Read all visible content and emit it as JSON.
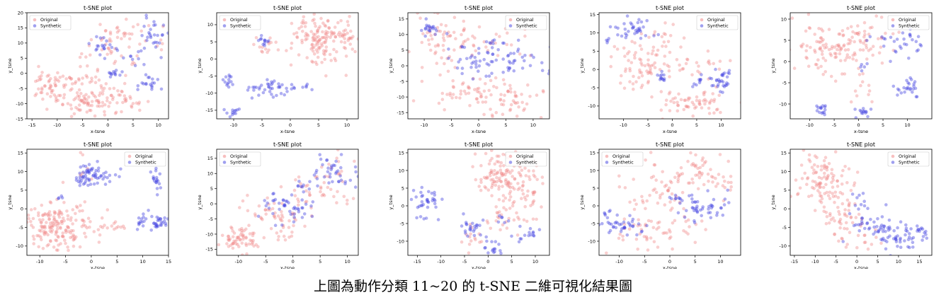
{
  "caption": "上圖為動作分類 11~20 的 t-SNE 二維可視化結果圖",
  "colors": {
    "original": "#f08080",
    "synthetic": "#4040e0"
  },
  "chart_data": [
    {
      "type": "scatter",
      "title": "t-SNE plot",
      "xlabel": "x-tsne",
      "ylabel": "y_tsne",
      "xlim": [
        -16,
        12
      ],
      "ylim": [
        -15,
        20
      ],
      "xticks": [
        -15,
        -10,
        -5,
        0,
        5,
        10
      ],
      "yticks": [
        -15,
        -10,
        -5,
        0,
        5,
        10,
        15,
        20
      ],
      "legend": {
        "loc": "upper-left",
        "entries": [
          "Original",
          "Synthetic"
        ]
      },
      "series": [
        {
          "name": "Original",
          "clusters": [
            {
              "cx": -11,
              "cy": -4,
              "sx": 2.5,
              "sy": 3,
              "n": 70
            },
            {
              "cx": -5,
              "cy": -10,
              "sx": 2.5,
              "sy": 2,
              "n": 45
            },
            {
              "cx": 0,
              "cy": -8,
              "sx": 3,
              "sy": 2.5,
              "n": 35
            },
            {
              "cx": 4,
              "cy": -9,
              "sx": 2,
              "sy": 1.5,
              "n": 20
            },
            {
              "cx": 0,
              "cy": 10,
              "sx": 2.5,
              "sy": 4,
              "n": 30
            },
            {
              "cx": 6,
              "cy": 12,
              "sx": 3,
              "sy": 3,
              "n": 25
            },
            {
              "cx": -3,
              "cy": 0,
              "sx": 2,
              "sy": 3,
              "n": 20
            }
          ]
        },
        {
          "name": "Synthetic",
          "clusters": [
            {
              "cx": -1,
              "cy": 9,
              "sx": 1.3,
              "sy": 1.5,
              "n": 20
            },
            {
              "cx": 9,
              "cy": 12,
              "sx": 1.5,
              "sy": 3,
              "n": 28
            },
            {
              "cx": 1,
              "cy": 0,
              "sx": 1.2,
              "sy": 0.8,
              "n": 12
            },
            {
              "cx": 8,
              "cy": -3,
              "sx": 1.3,
              "sy": 1.5,
              "n": 18
            },
            {
              "cx": 4,
              "cy": 5,
              "sx": 2,
              "sy": 1.5,
              "n": 8
            }
          ]
        }
      ]
    },
    {
      "type": "scatter",
      "title": "t-SNE plot",
      "xlabel": "x-tsne",
      "ylabel": "y_tsne",
      "xlim": [
        -13,
        12
      ],
      "ylim": [
        -17.5,
        13.5
      ],
      "xticks": [
        -10,
        -5,
        0,
        5,
        10
      ],
      "yticks": [
        -15,
        -10,
        -5,
        0,
        5,
        10
      ],
      "legend": {
        "loc": "upper-left",
        "entries": [
          "Original",
          "Synthetic"
        ]
      },
      "series": [
        {
          "name": "Original",
          "clusters": [
            {
              "cx": 6,
              "cy": 5,
              "sx": 3,
              "sy": 4,
              "n": 160
            },
            {
              "cx": -4,
              "cy": 4,
              "sx": 1,
              "sy": 1.5,
              "n": 15
            }
          ]
        },
        {
          "name": "Synthetic",
          "clusters": [
            {
              "cx": -11.5,
              "cy": -6.5,
              "sx": 0.8,
              "sy": 1,
              "n": 14
            },
            {
              "cx": -10,
              "cy": -15.5,
              "sx": 0.7,
              "sy": 0.6,
              "n": 12
            },
            {
              "cx": -3,
              "cy": -8,
              "sx": 2,
              "sy": 1.5,
              "n": 40
            },
            {
              "cx": -5,
              "cy": 4.5,
              "sx": 0.6,
              "sy": 0.8,
              "n": 12
            },
            {
              "cx": 3,
              "cy": -8,
              "sx": 0.8,
              "sy": 0.6,
              "n": 6
            }
          ]
        }
      ]
    },
    {
      "type": "scatter",
      "title": "t-SNE plot",
      "xlabel": "x-tsne",
      "ylabel": "y_tsne",
      "xlim": [
        -13,
        13
      ],
      "ylim": [
        -17,
        17
      ],
      "xticks": [
        -10,
        -5,
        0,
        5,
        10
      ],
      "yticks": [
        -15,
        -10,
        -5,
        0,
        5,
        10,
        15
      ],
      "legend": {
        "loc": "upper-right",
        "entries": [
          "Original",
          "Synthetic"
        ]
      },
      "series": [
        {
          "name": "Original",
          "clusters": [
            {
              "cx": -6,
              "cy": 8,
              "sx": 3,
              "sy": 5,
              "n": 60
            },
            {
              "cx": -2,
              "cy": -8,
              "sx": 4,
              "sy": 3,
              "n": 50
            },
            {
              "cx": 6,
              "cy": -11,
              "sx": 3,
              "sy": 3,
              "n": 50
            },
            {
              "cx": 3,
              "cy": 8,
              "sx": 4,
              "sy": 3,
              "n": 25
            }
          ]
        },
        {
          "name": "Synthetic",
          "clusters": [
            {
              "cx": -9,
              "cy": 12,
              "sx": 1.5,
              "sy": 1,
              "n": 20
            },
            {
              "cx": -1,
              "cy": 2,
              "sx": 2,
              "sy": 2.5,
              "n": 35
            },
            {
              "cx": 7,
              "cy": 1,
              "sx": 2.5,
              "sy": 2.5,
              "n": 35
            },
            {
              "cx": 3,
              "cy": 7,
              "sx": 2,
              "sy": 1,
              "n": 10
            }
          ]
        }
      ]
    },
    {
      "type": "scatter",
      "title": "t-SNE plot",
      "xlabel": "x-tsne",
      "ylabel": "y_tsne",
      "xlim": [
        -15,
        14
      ],
      "ylim": [
        -13.5,
        15.5
      ],
      "xticks": [
        -10,
        -5,
        0,
        5,
        10
      ],
      "yticks": [
        -10,
        -5,
        0,
        5,
        10,
        15
      ],
      "legend": {
        "loc": "upper-right",
        "entries": [
          "Original",
          "Synthetic"
        ]
      },
      "series": [
        {
          "name": "Original",
          "clusters": [
            {
              "cx": -6,
              "cy": 2,
              "sx": 3,
              "sy": 3.5,
              "n": 70
            },
            {
              "cx": 4,
              "cy": -9,
              "sx": 4,
              "sy": 2,
              "n": 65
            },
            {
              "cx": 3,
              "cy": 1,
              "sx": 4,
              "sy": 3,
              "n": 30
            },
            {
              "cx": -1,
              "cy": 9,
              "sx": 2,
              "sy": 2,
              "n": 10
            }
          ]
        },
        {
          "name": "Synthetic",
          "clusters": [
            {
              "cx": -8,
              "cy": 11,
              "sx": 2,
              "sy": 1.5,
              "n": 35
            },
            {
              "cx": -2,
              "cy": -2,
              "sx": 0.8,
              "sy": 0.8,
              "n": 12
            },
            {
              "cx": 10,
              "cy": -3,
              "sx": 1.5,
              "sy": 2,
              "n": 32
            },
            {
              "cx": 5,
              "cy": -3,
              "sx": 0.8,
              "sy": 0.8,
              "n": 8
            },
            {
              "cx": -13,
              "cy": 8,
              "sx": 0.5,
              "sy": 0.5,
              "n": 4
            }
          ]
        }
      ]
    },
    {
      "type": "scatter",
      "title": "t-SNE plot",
      "xlabel": "x-tsne",
      "ylabel": "y_tsne",
      "xlim": [
        -14,
        15
      ],
      "ylim": [
        -13.5,
        11.5
      ],
      "xticks": [
        -10,
        -5,
        0,
        5,
        10
      ],
      "yticks": [
        -10,
        -5,
        0,
        5,
        10
      ],
      "legend": {
        "loc": "upper-right",
        "entries": [
          "Original",
          "Synthetic"
        ]
      },
      "series": [
        {
          "name": "Original",
          "clusters": [
            {
              "cx": -6,
              "cy": 3,
              "sx": 4,
              "sy": 3,
              "n": 110
            },
            {
              "cx": 2,
              "cy": 5,
              "sx": 3,
              "sy": 3,
              "n": 35
            },
            {
              "cx": 1,
              "cy": -6,
              "sx": 2,
              "sy": 2,
              "n": 10
            }
          ]
        },
        {
          "name": "Synthetic",
          "clusters": [
            {
              "cx": -7.5,
              "cy": -11,
              "sx": 0.6,
              "sy": 0.8,
              "n": 15
            },
            {
              "cx": 1,
              "cy": -12,
              "sx": 0.7,
              "sy": 0.7,
              "n": 14
            },
            {
              "cx": 10,
              "cy": -6,
              "sx": 1,
              "sy": 1.2,
              "n": 25
            },
            {
              "cx": 9,
              "cy": 5,
              "sx": 3,
              "sy": 1.5,
              "n": 32
            },
            {
              "cx": 1,
              "cy": -1,
              "sx": 0.5,
              "sy": 0.8,
              "n": 5
            }
          ]
        }
      ]
    },
    {
      "type": "scatter",
      "title": "t-SNE plot",
      "xlabel": "x-tsne",
      "ylabel": "y_tsne",
      "xlim": [
        -12.5,
        15
      ],
      "ylim": [
        -12.5,
        16
      ],
      "xticks": [
        -10,
        -5,
        0,
        5,
        10,
        15
      ],
      "yticks": [
        -10,
        -5,
        0,
        5,
        10,
        15
      ],
      "legend": {
        "loc": "upper-right",
        "entries": [
          "Original",
          "Synthetic"
        ]
      },
      "series": [
        {
          "name": "Original",
          "clusters": [
            {
              "cx": -7,
              "cy": -5,
              "sx": 3.5,
              "sy": 3.5,
              "n": 180
            },
            {
              "cx": 4,
              "cy": -5,
              "sx": 2,
              "sy": 1,
              "n": 12
            },
            {
              "cx": -2,
              "cy": 10,
              "sx": 1.5,
              "sy": 3,
              "n": 8
            }
          ]
        },
        {
          "name": "Synthetic",
          "clusters": [
            {
              "cx": 0,
              "cy": 9,
              "sx": 2,
              "sy": 1.5,
              "n": 65
            },
            {
              "cx": 12,
              "cy": -3.5,
              "sx": 1.5,
              "sy": 1,
              "n": 40
            },
            {
              "cx": 12.5,
              "cy": 8,
              "sx": 0.6,
              "sy": 1.5,
              "n": 18
            },
            {
              "cx": -6,
              "cy": 3,
              "sx": 0.4,
              "sy": 0.4,
              "n": 4
            }
          ]
        }
      ]
    },
    {
      "type": "scatter",
      "title": "t-SNE plot",
      "xlabel": "x-tsne",
      "ylabel": "y_tsne",
      "xlim": [
        -14,
        12
      ],
      "ylim": [
        -17,
        18
      ],
      "xticks": [
        -10,
        -5,
        0,
        5,
        10
      ],
      "yticks": [
        -15,
        -10,
        -5,
        0,
        5,
        10,
        15
      ],
      "legend": {
        "loc": "upper-left",
        "entries": [
          "Original",
          "Synthetic"
        ]
      },
      "series": [
        {
          "name": "Original",
          "clusters": [
            {
              "cx": -10,
              "cy": -12,
              "sx": 2,
              "sy": 2,
              "n": 60
            },
            {
              "cx": -4,
              "cy": -5,
              "sx": 3,
              "sy": 4,
              "n": 60
            },
            {
              "cx": 4,
              "cy": 4,
              "sx": 3,
              "sy": 3.5,
              "n": 40
            },
            {
              "cx": 9,
              "cy": 12,
              "sx": 1.5,
              "sy": 2,
              "n": 10
            }
          ]
        },
        {
          "name": "Synthetic",
          "clusters": [
            {
              "cx": 8,
              "cy": 10,
              "sx": 2,
              "sy": 3,
              "n": 40
            },
            {
              "cx": 0,
              "cy": -2,
              "sx": 2.5,
              "sy": 3,
              "n": 40
            },
            {
              "cx": 2,
              "cy": 6,
              "sx": 1.5,
              "sy": 1.5,
              "n": 10
            },
            {
              "cx": -4,
              "cy": 0,
              "sx": 0.8,
              "sy": 0.8,
              "n": 5
            }
          ]
        }
      ]
    },
    {
      "type": "scatter",
      "title": "t-SNE plot",
      "xlabel": "x-tsne",
      "ylabel": "y_tsne",
      "xlim": [
        -17,
        13
      ],
      "ylim": [
        -14,
        16
      ],
      "xticks": [
        -15,
        -10,
        -5,
        0,
        5,
        10
      ],
      "yticks": [
        -10,
        -5,
        0,
        5,
        10,
        15
      ],
      "legend": {
        "loc": "upper-right",
        "entries": [
          "Original",
          "Synthetic"
        ]
      },
      "series": [
        {
          "name": "Original",
          "clusters": [
            {
              "cx": 3,
              "cy": 8,
              "sx": 3,
              "sy": 4,
              "n": 120
            },
            {
              "cx": 8,
              "cy": 3,
              "sx": 2.5,
              "sy": 3,
              "n": 40
            },
            {
              "cx": -3,
              "cy": -8,
              "sx": 2,
              "sy": 2,
              "n": 15
            },
            {
              "cx": 5,
              "cy": -4,
              "sx": 3,
              "sy": 2,
              "n": 20
            }
          ]
        },
        {
          "name": "Synthetic",
          "clusters": [
            {
              "cx": -13,
              "cy": 2,
              "sx": 1.5,
              "sy": 2.5,
              "n": 35
            },
            {
              "cx": -3,
              "cy": -6,
              "sx": 2,
              "sy": 1.5,
              "n": 25
            },
            {
              "cx": 1,
              "cy": -12,
              "sx": 1,
              "sy": 1,
              "n": 15
            },
            {
              "cx": 8,
              "cy": -8,
              "sx": 1.5,
              "sy": 1.2,
              "n": 15
            },
            {
              "cx": 3,
              "cy": -4,
              "sx": 0.8,
              "sy": 0.8,
              "n": 6
            }
          ]
        }
      ]
    },
    {
      "type": "scatter",
      "title": "t-SNE plot",
      "xlabel": "x-tsne",
      "ylabel": "y_tsne",
      "xlim": [
        -14,
        14
      ],
      "ylim": [
        -14,
        16
      ],
      "xticks": [
        -10,
        -5,
        0,
        5,
        10
      ],
      "yticks": [
        -10,
        -5,
        0,
        5,
        10,
        15
      ],
      "legend": {
        "loc": "upper-left",
        "entries": [
          "Original",
          "Synthetic"
        ]
      },
      "series": [
        {
          "name": "Original",
          "clusters": [
            {
              "cx": 5,
              "cy": 10,
              "sx": 3,
              "sy": 3,
              "n": 50
            },
            {
              "cx": -2,
              "cy": 3,
              "sx": 3,
              "sy": 4,
              "n": 50
            },
            {
              "cx": -5,
              "cy": -8,
              "sx": 2.5,
              "sy": 3,
              "n": 40
            },
            {
              "cx": 3,
              "cy": -6,
              "sx": 2,
              "sy": 2,
              "n": 15
            },
            {
              "cx": 10,
              "cy": 6,
              "sx": 2,
              "sy": 2,
              "n": 10
            }
          ]
        },
        {
          "name": "Synthetic",
          "clusters": [
            {
              "cx": -9,
              "cy": -6,
              "sx": 2.5,
              "sy": 1.2,
              "n": 40
            },
            {
              "cx": 7,
              "cy": 0,
              "sx": 3,
              "sy": 2,
              "n": 45
            },
            {
              "cx": 1,
              "cy": 2,
              "sx": 1,
              "sy": 1,
              "n": 10
            },
            {
              "cx": -12,
              "cy": -2,
              "sx": 0.6,
              "sy": 0.6,
              "n": 5
            }
          ]
        }
      ]
    },
    {
      "type": "scatter",
      "title": "t-SNE plot",
      "xlabel": "x-tsne",
      "ylabel": "y_tsne",
      "xlim": [
        -16,
        18
      ],
      "ylim": [
        -12.5,
        16
      ],
      "xticks": [
        -15,
        -10,
        -5,
        0,
        5,
        10,
        15
      ],
      "yticks": [
        -10,
        -5,
        0,
        5,
        10,
        15
      ],
      "legend": {
        "loc": "upper-right",
        "entries": [
          "Original",
          "Synthetic"
        ]
      },
      "series": [
        {
          "name": "Original",
          "clusters": [
            {
              "cx": -8,
              "cy": 7,
              "sx": 3.5,
              "sy": 4,
              "n": 110
            },
            {
              "cx": -4,
              "cy": -3,
              "sx": 2.5,
              "sy": 2.5,
              "n": 40
            },
            {
              "cx": 3,
              "cy": -8,
              "sx": 2,
              "sy": 2,
              "n": 15
            }
          ]
        },
        {
          "name": "Synthetic",
          "clusters": [
            {
              "cx": 4,
              "cy": -5,
              "sx": 2.5,
              "sy": 2,
              "n": 40
            },
            {
              "cx": 10,
              "cy": -8,
              "sx": 2.5,
              "sy": 2,
              "n": 40
            },
            {
              "cx": 15,
              "cy": -6,
              "sx": 1.5,
              "sy": 1,
              "n": 15
            },
            {
              "cx": 1,
              "cy": 3,
              "sx": 1,
              "sy": 1.5,
              "n": 10
            }
          ]
        }
      ]
    }
  ]
}
